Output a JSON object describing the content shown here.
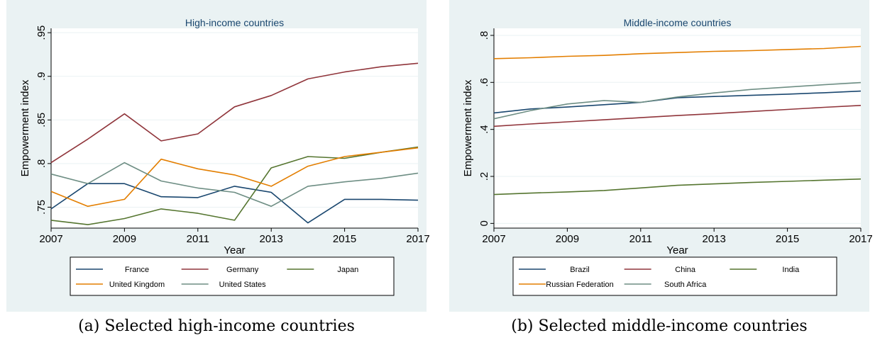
{
  "captions": {
    "a": "(a) Selected high-income countries",
    "b": "(b) Selected middle-income countries"
  },
  "colors": {
    "panel_bg": "#eaf2f3",
    "plot_bg": "#ffffff",
    "grid": "#eaf2f3",
    "axis": "#000000"
  },
  "chart_data": [
    {
      "type": "line",
      "title": "High-income countries",
      "xlabel": "Year",
      "ylabel": "Empowerment index",
      "xlim": [
        2007,
        2017
      ],
      "ylim": [
        0.726,
        0.955
      ],
      "x_ticks": [
        2007,
        2009,
        2011,
        2013,
        2015,
        2017
      ],
      "y_ticks": [
        0.75,
        0.8,
        0.85,
        0.9,
        0.95
      ],
      "y_tick_labels": [
        ".75",
        ".8",
        ".85",
        ".9",
        ".95"
      ],
      "grid": true,
      "legend_position": "bottom",
      "legend_columns": 3,
      "x": [
        2007,
        2008,
        2009,
        2010,
        2011,
        2012,
        2013,
        2014,
        2015,
        2016,
        2017
      ],
      "series": [
        {
          "name": "France",
          "color": "#1a476f",
          "values": [
            0.748,
            0.777,
            0.777,
            0.762,
            0.761,
            0.774,
            0.767,
            0.732,
            0.759,
            0.759,
            0.758
          ]
        },
        {
          "name": "Germany",
          "color": "#90353b",
          "values": [
            0.801,
            0.828,
            0.857,
            0.826,
            0.834,
            0.865,
            0.878,
            0.897,
            0.905,
            0.911,
            0.915
          ]
        },
        {
          "name": "Japan",
          "color": "#55752f",
          "values": [
            0.735,
            0.73,
            0.737,
            0.748,
            0.743,
            0.735,
            0.795,
            0.808,
            0.806,
            0.813,
            0.819
          ]
        },
        {
          "name": "United Kingdom",
          "color": "#e37e00",
          "values": [
            0.768,
            0.751,
            0.759,
            0.805,
            0.794,
            0.787,
            0.774,
            0.797,
            0.808,
            0.813,
            0.818
          ]
        },
        {
          "name": "United States",
          "color": "#6e8e84",
          "values": [
            0.788,
            0.777,
            0.801,
            0.78,
            0.772,
            0.767,
            0.751,
            0.774,
            0.779,
            0.783,
            0.789
          ]
        }
      ]
    },
    {
      "type": "line",
      "title": "Middle-income countries",
      "xlabel": "Year",
      "ylabel": "Empowerment index",
      "xlim": [
        2007,
        2017
      ],
      "ylim": [
        -0.02,
        0.83
      ],
      "x_ticks": [
        2007,
        2009,
        2011,
        2013,
        2015,
        2017
      ],
      "y_ticks": [
        0,
        0.2,
        0.4,
        0.6,
        0.8
      ],
      "y_tick_labels": [
        "0",
        ".2",
        ".4",
        ".6",
        ".8"
      ],
      "grid": true,
      "legend_position": "bottom",
      "legend_columns": 3,
      "x": [
        2007,
        2008,
        2009,
        2010,
        2011,
        2012,
        2013,
        2014,
        2015,
        2016,
        2017
      ],
      "series": [
        {
          "name": "Brazil",
          "color": "#1a476f",
          "values": [
            0.47,
            0.487,
            0.495,
            0.505,
            0.515,
            0.535,
            0.54,
            0.545,
            0.55,
            0.556,
            0.563
          ]
        },
        {
          "name": "China",
          "color": "#90353b",
          "values": [
            0.413,
            0.423,
            0.432,
            0.441,
            0.45,
            0.459,
            0.467,
            0.476,
            0.485,
            0.494,
            0.502
          ]
        },
        {
          "name": "India",
          "color": "#55752f",
          "values": [
            0.123,
            0.129,
            0.134,
            0.14,
            0.151,
            0.162,
            0.168,
            0.174,
            0.179,
            0.184,
            0.189
          ]
        },
        {
          "name": "Russian Federation",
          "color": "#e37e00",
          "values": [
            0.701,
            0.705,
            0.711,
            0.715,
            0.722,
            0.727,
            0.732,
            0.735,
            0.74,
            0.744,
            0.753
          ]
        },
        {
          "name": "South Africa",
          "color": "#6e8e84",
          "values": [
            0.445,
            0.48,
            0.508,
            0.523,
            0.515,
            0.538,
            0.555,
            0.57,
            0.58,
            0.59,
            0.599
          ]
        }
      ]
    }
  ]
}
